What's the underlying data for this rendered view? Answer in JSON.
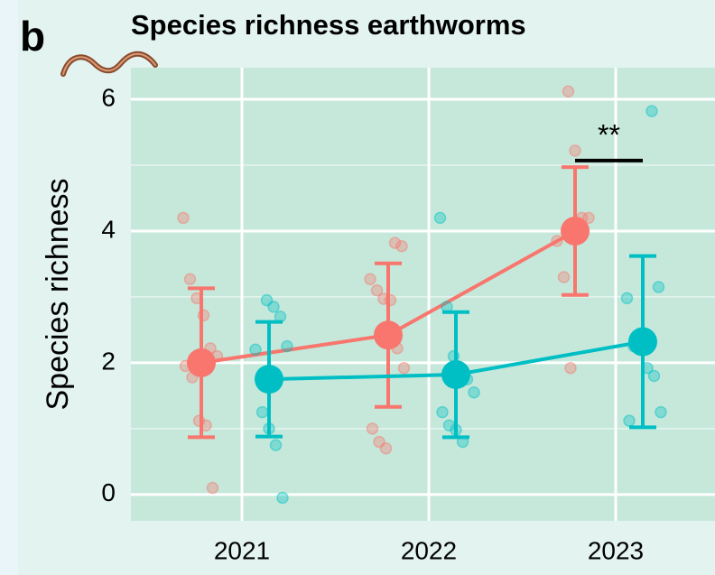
{
  "chart_data": {
    "type": "dot-errorbar",
    "panel_label": "b",
    "title": "Species richness earthworms",
    "y_label": "Species richness",
    "categories": [
      "2021",
      "2022",
      "2023"
    ],
    "ylim": [
      -0.4,
      6.48
    ],
    "yticks": [
      0,
      2,
      4,
      6
    ],
    "minor_yticks": [
      1,
      3,
      5
    ],
    "grid": true,
    "series": [
      {
        "color": "#f8766d",
        "values": [
          2.0,
          2.42,
          4.0
        ],
        "errors": [
          1.13,
          1.09,
          0.97
        ],
        "points": [
          [
            4.2,
            3.27,
            2.98,
            2.72,
            2.22,
            2.1,
            1.95,
            1.78,
            1.12,
            1.05,
            0.1
          ],
          [
            3.82,
            3.77,
            3.27,
            3.1,
            2.97,
            2.95,
            2.22,
            1.92,
            1.0,
            0.8,
            0.7
          ],
          [
            6.12,
            5.22,
            4.2,
            4.2,
            3.85,
            3.3,
            1.92
          ]
        ]
      },
      {
        "color": "#00bfc4",
        "values": [
          1.75,
          1.82,
          2.32
        ],
        "errors": [
          0.87,
          0.95,
          1.3
        ],
        "points": [
          [
            2.95,
            2.85,
            2.7,
            2.25,
            2.2,
            1.25,
            1.0,
            0.75,
            -0.05
          ],
          [
            4.2,
            2.85,
            2.1,
            1.9,
            1.75,
            1.55,
            1.25,
            1.05,
            0.98,
            0.8
          ],
          [
            5.82,
            3.15,
            2.98,
            2.25,
            2.2,
            1.92,
            1.8,
            1.25,
            1.12
          ]
        ]
      }
    ],
    "significance": {
      "category": 2,
      "label": "**",
      "y": 5.07
    }
  }
}
